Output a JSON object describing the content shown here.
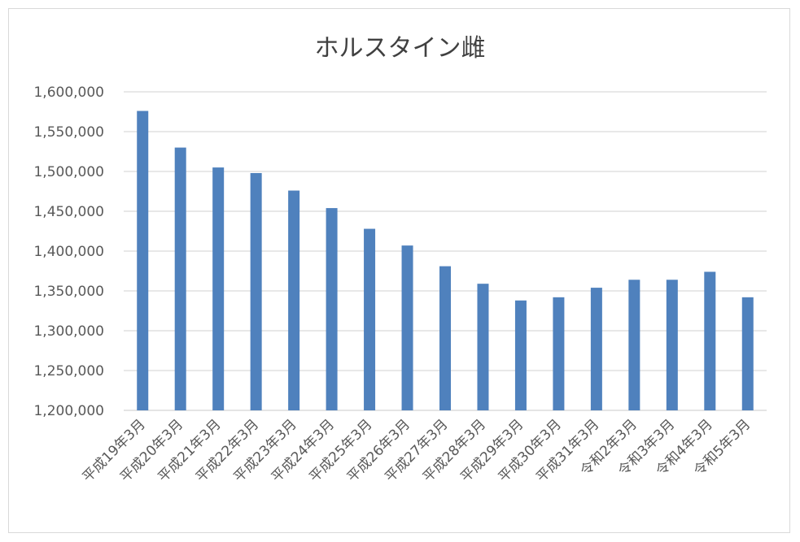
{
  "chart_data": {
    "type": "bar",
    "title": "ホルスタイン雌",
    "xlabel": "",
    "ylabel": "",
    "ylim": [
      1200000,
      1600000
    ],
    "yticks": [
      "1,200,000",
      "1,250,000",
      "1,300,000",
      "1,350,000",
      "1,400,000",
      "1,450,000",
      "1,500,000",
      "1,550,000",
      "1,600,000"
    ],
    "grid": true,
    "bar_color": "#4f81bd",
    "categories": [
      "平成19年3月",
      "平成20年3月",
      "平成21年3月",
      "平成22年3月",
      "平成23年3月",
      "平成24年3月",
      "平成25年3月",
      "平成26年3月",
      "平成27年3月",
      "平成28年3月",
      "平成29年3月",
      "平成30年3月",
      "平成31年3月",
      "令和2年3月",
      "令和3年3月",
      "令和4年3月",
      "令和5年3月"
    ],
    "values": [
      1576000,
      1530000,
      1505000,
      1498000,
      1476000,
      1454000,
      1428000,
      1407000,
      1381000,
      1359000,
      1338000,
      1342000,
      1354000,
      1364000,
      1364000,
      1374000,
      1342000
    ]
  }
}
